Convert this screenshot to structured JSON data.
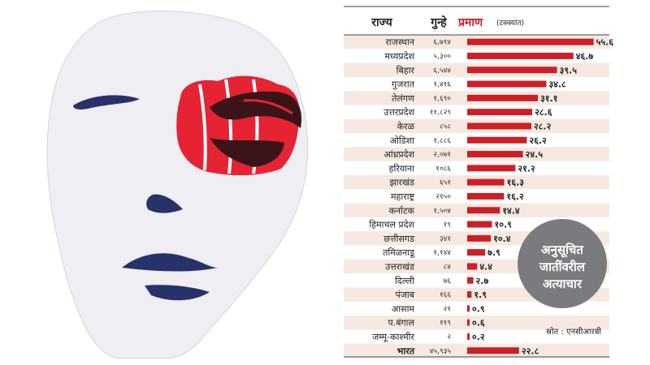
{
  "chart_data": {
    "type": "bar",
    "header": {
      "state": "राज्य",
      "cases": "गुन्हे",
      "rate": "प्रमाण",
      "rate_unit": "(टक्क्यांत)"
    },
    "rows": [
      {
        "state": "राजस्थान",
        "cases": "६,७९४",
        "value": 55.6,
        "label": "५५.६"
      },
      {
        "state": "मध्यप्रदेश",
        "cases": "५,३००",
        "value": 46.7,
        "label": "४६.७"
      },
      {
        "state": "बिहार",
        "cases": "६,५४४",
        "value": 39.5,
        "label": "३९.५"
      },
      {
        "state": "गुजरात",
        "cases": "१,४१६",
        "value": 34.8,
        "label": "३४.८"
      },
      {
        "state": "तेलंगण",
        "cases": "१,६९०",
        "value": 31.1,
        "label": "३१.१"
      },
      {
        "state": "उत्तरप्रदेश",
        "cases": "११,८२९",
        "value": 28.6,
        "label": "२८.६"
      },
      {
        "state": "केरळ",
        "cases": "८५८",
        "value": 28.2,
        "label": "२८.२"
      },
      {
        "state": "ओडिशा",
        "cases": "१,८८६",
        "value": 26.2,
        "label": "२६.२"
      },
      {
        "state": "आंध्रप्रदेश",
        "cases": "२,०७१",
        "value": 24.5,
        "label": "२४.५"
      },
      {
        "state": "हरियाना",
        "cases": "१०८६",
        "value": 21.2,
        "label": "२१.२"
      },
      {
        "state": "झारखंड",
        "cases": "६५१",
        "value": 16.3,
        "label": "१६.३"
      },
      {
        "state": "महाराष्ट्र",
        "cases": "२१५०",
        "value": 16.2,
        "label": "१६.२"
      },
      {
        "state": "कर्नाटक",
        "cases": "१,५०४",
        "value": 14.4,
        "label": "१४.४"
      },
      {
        "state": "हिमाचल प्रदेश",
        "cases": "१९",
        "value": 10.9,
        "label": "१०.९"
      },
      {
        "state": "छत्तीसगड",
        "cases": "३४१",
        "value": 10.4,
        "label": "१०.४"
      },
      {
        "state": "तमिळनाडू",
        "cases": "१,१४४",
        "value": 7.9,
        "label": "७.९"
      },
      {
        "state": "उत्तराखंड",
        "cases": "८४",
        "value": 4.4,
        "label": "४.४"
      },
      {
        "state": "दिल्ली",
        "cases": "७६",
        "value": 2.7,
        "label": "२.७"
      },
      {
        "state": "पंजाब",
        "cases": "१६६",
        "value": 1.9,
        "label": "१.९"
      },
      {
        "state": "आसाम",
        "cases": "२१",
        "value": 0.9,
        "label": "०.९"
      },
      {
        "state": "प.बंगाल",
        "cases": "११९",
        "value": 0.6,
        "label": "०.६"
      },
      {
        "state": "जम्मू-काश्मीर",
        "cases": "२",
        "value": 0.2,
        "label": "०.२"
      },
      {
        "state": "भारत",
        "cases": "४५,९३५",
        "value": 22.8,
        "label": "२२.८"
      }
    ],
    "badge": "अनुसूचित जातींवरील अत्याचार",
    "source": "स्रोत : एनसीआरबी",
    "xlim": [
      0,
      60
    ],
    "colors": {
      "bar": "#cc1f26",
      "badge": "#7a7b7e",
      "row_stripe": "#f6e9e1",
      "face_blue": "#29316b",
      "fist_red": "#e52332",
      "fist_dark": "#3a1418"
    }
  }
}
